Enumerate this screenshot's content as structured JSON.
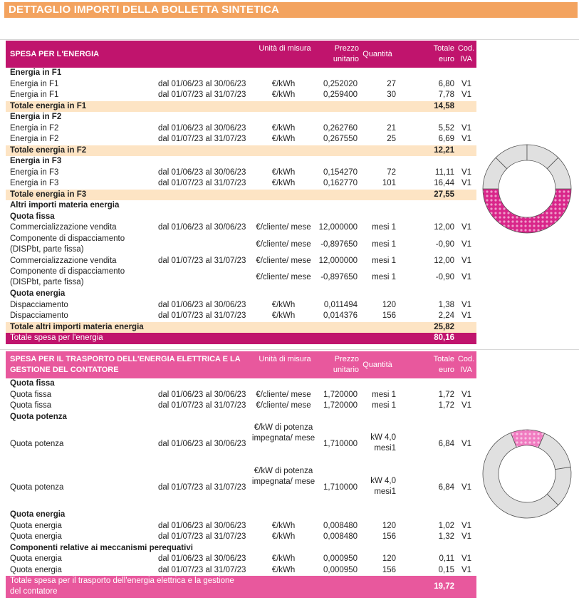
{
  "title": "DETTAGLIO IMPORTI DELLA BOLLETTA SINTETICA",
  "sections": [
    {
      "header": {
        "title": "SPESA PER L'ENERGIA",
        "unit": "Unità di misura",
        "price": "Prezzo unitario",
        "qty": "Quantità",
        "total": "Totale euro",
        "iva": "Cod. IVA",
        "color": "#c0146d"
      },
      "rows": [
        {
          "type": "group",
          "label": "Energia in F1"
        },
        {
          "type": "item",
          "label": "Energia in F1",
          "period": "dal 01/06/23 al 30/06/23",
          "unit": "€/kWh",
          "price": "0,252020",
          "qty": "27",
          "total": "6,80",
          "iva": "V1"
        },
        {
          "type": "item",
          "label": "Energia in F1",
          "period": "dal 01/07/23 al 31/07/23",
          "unit": "€/kWh",
          "price": "0,259400",
          "qty": "30",
          "total": "7,78",
          "iva": "V1"
        },
        {
          "type": "subtotal",
          "label": "Totale energia in F1",
          "total": "14,58"
        },
        {
          "type": "group",
          "label": "Energia in F2"
        },
        {
          "type": "item",
          "label": "Energia in F2",
          "period": "dal 01/06/23 al 30/06/23",
          "unit": "€/kWh",
          "price": "0,262760",
          "qty": "21",
          "total": "5,52",
          "iva": "V1"
        },
        {
          "type": "item",
          "label": "Energia in F2",
          "period": "dal 01/07/23 al 31/07/23",
          "unit": "€/kWh",
          "price": "0,267550",
          "qty": "25",
          "total": "6,69",
          "iva": "V1"
        },
        {
          "type": "subtotal",
          "label": "Totale energia in F2",
          "total": "12,21"
        },
        {
          "type": "group",
          "label": "Energia in F3"
        },
        {
          "type": "item",
          "label": "Energia in F3",
          "period": "dal 01/06/23 al 30/06/23",
          "unit": "€/kWh",
          "price": "0,154270",
          "qty": "72",
          "total": "11,11",
          "iva": "V1"
        },
        {
          "type": "item",
          "label": "Energia in F3",
          "period": "dal 01/07/23 al 31/07/23",
          "unit": "€/kWh",
          "price": "0,162770",
          "qty": "101",
          "total": "16,44",
          "iva": "V1"
        },
        {
          "type": "subtotal",
          "label": "Totale energia in F3",
          "total": "27,55"
        },
        {
          "type": "group",
          "label": "Altri importi materia energia"
        },
        {
          "type": "group",
          "label": "Quota fissa"
        },
        {
          "type": "item",
          "label": "Commercializzazione vendita",
          "period": "dal 01/06/23 al 30/06/23",
          "unit": "€/cliente/ mese",
          "price": "12,000000",
          "qty": "mesi 1",
          "total": "12,00",
          "iva": "V1"
        },
        {
          "type": "item2",
          "label": "Componente di dispacciamento (DISPbt, parte fissa)",
          "period": "",
          "unit": "€/cliente/ mese",
          "price": "-0,897650",
          "qty": "mesi 1",
          "total": "-0,90",
          "iva": "V1"
        },
        {
          "type": "item",
          "label": "Commercializzazione vendita",
          "period": "dal 01/07/23 al 31/07/23",
          "unit": "€/cliente/ mese",
          "price": "12,000000",
          "qty": "mesi 1",
          "total": "12,00",
          "iva": "V1"
        },
        {
          "type": "item2",
          "label": "Componente di dispacciamento (DISPbt, parte fissa)",
          "period": "",
          "unit": "€/cliente/ mese",
          "price": "-0,897650",
          "qty": "mesi 1",
          "total": "-0,90",
          "iva": "V1"
        },
        {
          "type": "group",
          "label": "Quota energia"
        },
        {
          "type": "item",
          "label": "Dispacciamento",
          "period": "dal 01/06/23 al 30/06/23",
          "unit": "€/kWh",
          "price": "0,011494",
          "qty": "120",
          "total": "1,38",
          "iva": "V1"
        },
        {
          "type": "item",
          "label": "Dispacciamento",
          "period": "dal 01/07/23 al 31/07/23",
          "unit": "€/kWh",
          "price": "0,014376",
          "qty": "156",
          "total": "2,24",
          "iva": "V1"
        },
        {
          "type": "subtotal",
          "label": "Totale altri importi materia energia",
          "total": "25,82"
        },
        {
          "type": "grand",
          "label": "Totale spesa per l'energia",
          "total": "80,16"
        }
      ]
    },
    {
      "header": {
        "title": "SPESA PER IL TRASPORTO DELL'ENERGIA ELETTRICA E LA GESTIONE DEL CONTATORE",
        "unit": "Unità di misura",
        "price": "Prezzo unitario",
        "qty": "Quantità",
        "total": "Totale euro",
        "iva": "Cod. IVA",
        "color": "#e8589d"
      },
      "rows": [
        {
          "type": "group",
          "label": "Quota fissa"
        },
        {
          "type": "item",
          "label": "Quota fissa",
          "period": "dal 01/06/23 al 30/06/23",
          "unit": "€/cliente/ mese",
          "price": "1,720000",
          "qty": "mesi 1",
          "total": "1,72",
          "iva": "V1"
        },
        {
          "type": "item",
          "label": "Quota fissa",
          "period": "dal 01/07/23 al 31/07/23",
          "unit": "€/cliente/ mese",
          "price": "1,720000",
          "qty": "mesi 1",
          "total": "1,72",
          "iva": "V1"
        },
        {
          "type": "group",
          "label": "Quota potenza"
        },
        {
          "type": "tall",
          "label": "Quota potenza",
          "period": "dal 01/06/23 al 30/06/23",
          "unit": "€/kW di potenza impegnata/ mese",
          "price": "1,710000",
          "qty": "kW 4,0 mesi1",
          "total": "6,84",
          "iva": "V1"
        },
        {
          "type": "tall",
          "label": "Quota potenza",
          "period": "dal 01/07/23 al 31/07/23",
          "unit": "€/kW di potenza impegnata/ mese",
          "price": "1,710000",
          "qty": "kW 4,0 mesi1",
          "total": "6,84",
          "iva": "V1"
        },
        {
          "type": "group",
          "label": "Quota energia"
        },
        {
          "type": "item",
          "label": "Quota energia",
          "period": "dal 01/06/23 al 30/06/23",
          "unit": "€/kWh",
          "price": "0,008480",
          "qty": "120",
          "total": "1,02",
          "iva": "V1"
        },
        {
          "type": "item",
          "label": "Quota energia",
          "period": "dal 01/07/23 al 31/07/23",
          "unit": "€/kWh",
          "price": "0,008480",
          "qty": "156",
          "total": "1,32",
          "iva": "V1"
        },
        {
          "type": "group",
          "label": "Componenti relative ai meccanismi perequativi"
        },
        {
          "type": "item",
          "label": "Quota energia",
          "period": "dal 01/06/23 al 30/06/23",
          "unit": "€/kWh",
          "price": "0,000950",
          "qty": "120",
          "total": "0,11",
          "iva": "V1"
        },
        {
          "type": "item",
          "label": "Quota energia",
          "period": "dal 01/07/23 al 31/07/23",
          "unit": "€/kWh",
          "price": "0,000950",
          "qty": "156",
          "total": "0,15",
          "iva": "V1"
        },
        {
          "type": "grand2",
          "label": "Totale spesa per il trasporto dell'energia elettrica e la gestione del contatore",
          "total": "19,72"
        }
      ]
    }
  ],
  "donuts": [
    {
      "highlight_fraction": 0.5,
      "highlight_color": "#d9268a",
      "base_color": "#e0e0e0"
    },
    {
      "highlight_fraction": 0.125,
      "highlight_color": "#f07bc0",
      "base_color": "#e0e0e0"
    }
  ]
}
